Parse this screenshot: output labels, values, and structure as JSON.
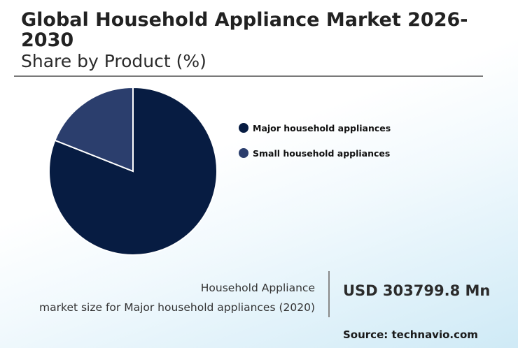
{
  "header": {
    "title": "Global Household Appliance Market 2026-2030",
    "subtitle": "Share by Product (%)"
  },
  "chart_data": {
    "type": "pie",
    "categories": [
      "Major household appliances",
      "Small household appliances"
    ],
    "values": [
      81,
      19
    ],
    "colors": [
      "#071c42",
      "#2b3e6d"
    ],
    "start_angle_deg": 0,
    "legend_position": "right"
  },
  "stat": {
    "label_line1": "Household Appliance",
    "label_line2": "market size for Major household appliances (2020)",
    "value": "USD 303799.8 Mn"
  },
  "footer": {
    "source": "Source: technavio.com"
  }
}
